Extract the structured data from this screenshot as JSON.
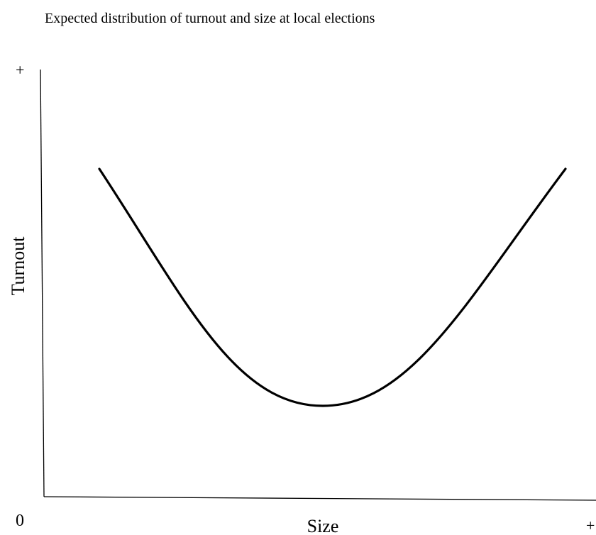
{
  "title": "Expected distribution of turnout and size at local elections",
  "axes": {
    "y_label": "Turnout",
    "x_label": "Size",
    "origin_label": "0",
    "y_max_label": "+",
    "x_max_label": "+"
  }
}
